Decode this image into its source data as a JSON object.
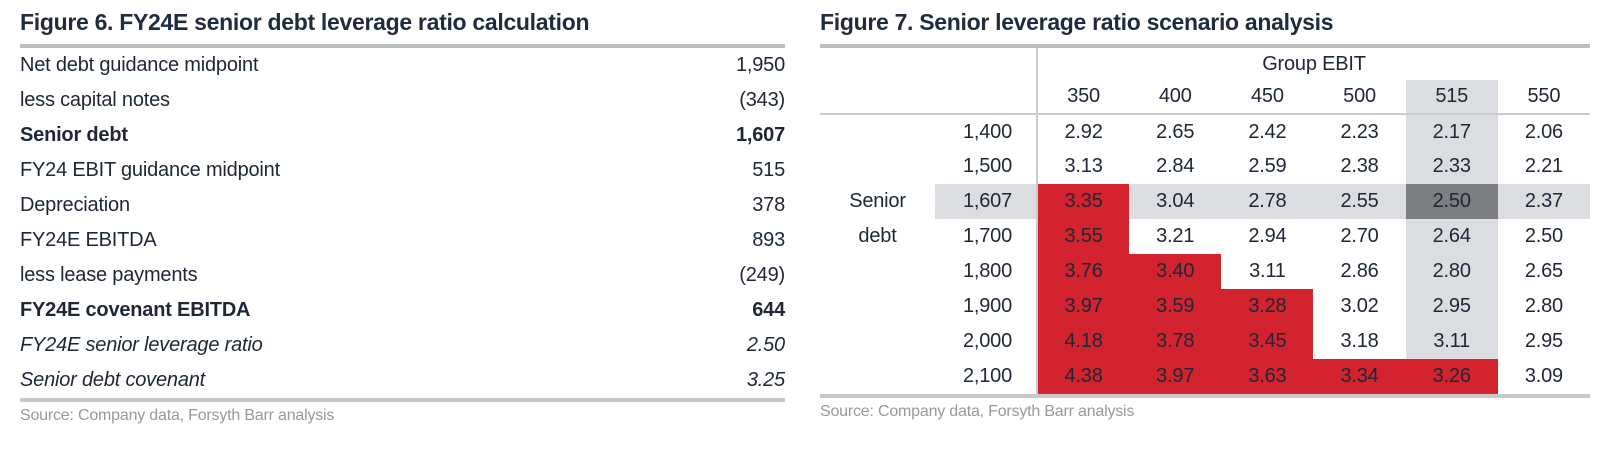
{
  "colors": {
    "title_navy": "#1f2b3e",
    "text_navy": "#1d2736",
    "breach_red": "#d2232e",
    "highlight_gray": "#dcdde0",
    "intersection_gray": "#7c7e81",
    "rule_gray": "#bcbec0",
    "source_gray": "#97999c"
  },
  "chart_data": [
    {
      "type": "table",
      "title": "Figure 6. FY24E senior debt leverage ratio calculation",
      "source": "Source: Company data, Forsyth Barr analysis",
      "rows": [
        {
          "label": "Net debt guidance midpoint",
          "value": "1,950",
          "emphasis": "normal"
        },
        {
          "label": "less capital notes",
          "value": "(343)",
          "emphasis": "normal"
        },
        {
          "label": "Senior debt",
          "value": "1,607",
          "emphasis": "bold"
        },
        {
          "label": "FY24 EBIT guidance midpoint",
          "value": "515",
          "emphasis": "normal"
        },
        {
          "label": "Depreciation",
          "value": "378",
          "emphasis": "normal"
        },
        {
          "label": "FY24E EBITDA",
          "value": "893",
          "emphasis": "normal"
        },
        {
          "label": "less lease payments",
          "value": "(249)",
          "emphasis": "normal"
        },
        {
          "label": "FY24E covenant EBITDA",
          "value": "644",
          "emphasis": "bold"
        },
        {
          "label": "FY24E senior leverage ratio",
          "value": "2.50",
          "emphasis": "italic"
        },
        {
          "label": "Senior debt covenant",
          "value": "3.25",
          "emphasis": "italic"
        }
      ]
    },
    {
      "type": "heatmap",
      "title": "Figure 7. Senior leverage ratio scenario analysis",
      "source": "Source: Company data, Forsyth Barr analysis",
      "column_group_label": "Group EBIT",
      "row_side_labels": [
        "",
        "",
        "Senior",
        "debt",
        "",
        "",
        "",
        ""
      ],
      "columns": [
        "350",
        "400",
        "450",
        "500",
        "515",
        "550"
      ],
      "row_headers": [
        "1,400",
        "1,500",
        "1,607",
        "1,700",
        "1,800",
        "1,900",
        "2,000",
        "2,100"
      ],
      "values": [
        [
          2.92,
          2.65,
          2.42,
          2.23,
          2.17,
          2.06
        ],
        [
          3.13,
          2.84,
          2.59,
          2.38,
          2.33,
          2.21
        ],
        [
          3.35,
          3.04,
          2.78,
          2.55,
          2.5,
          2.37
        ],
        [
          3.55,
          3.21,
          2.94,
          2.7,
          2.64,
          2.5
        ],
        [
          3.76,
          3.4,
          3.11,
          2.86,
          2.8,
          2.65
        ],
        [
          3.97,
          3.59,
          3.28,
          3.02,
          2.95,
          2.8
        ],
        [
          4.18,
          3.78,
          3.45,
          3.18,
          3.11,
          2.95
        ],
        [
          4.38,
          3.97,
          3.63,
          3.34,
          3.26,
          3.09
        ]
      ],
      "highlight_column": "515",
      "highlight_row": "1,607",
      "covenant_threshold": 3.25
    }
  ]
}
